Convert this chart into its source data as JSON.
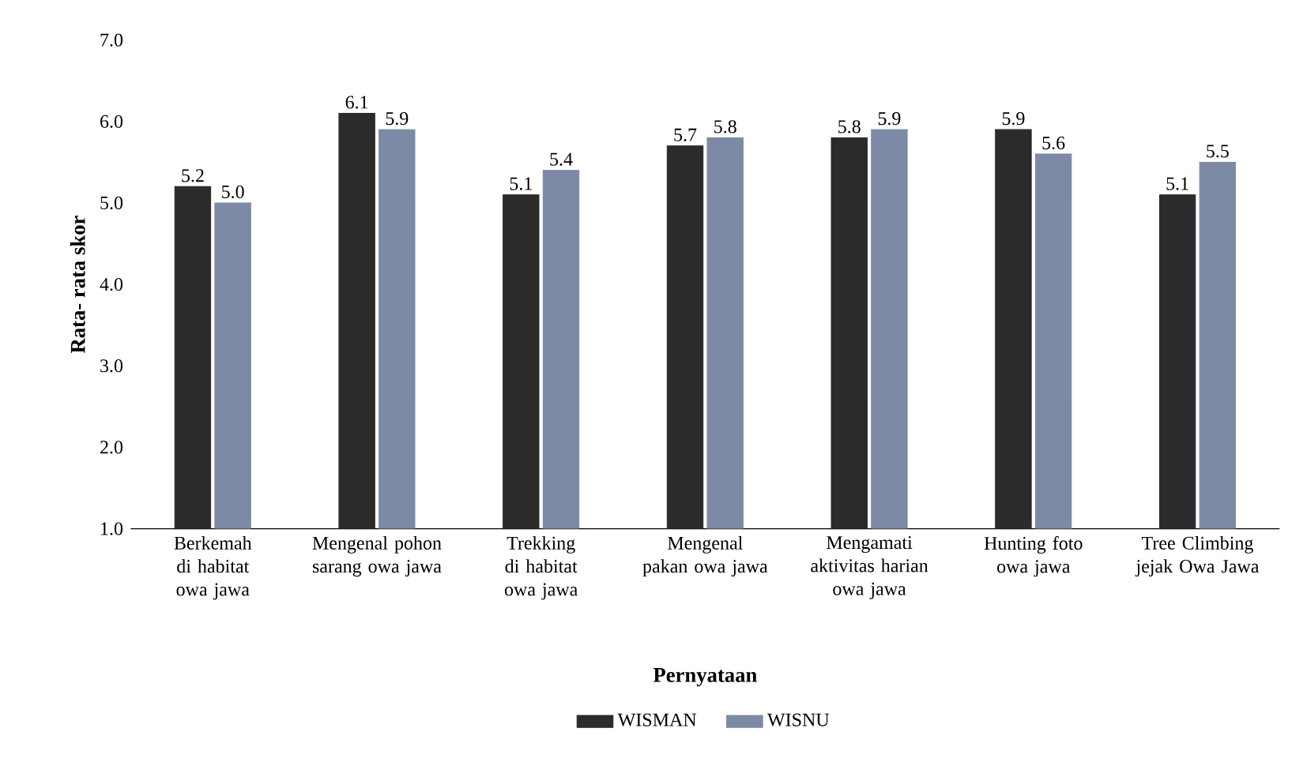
{
  "chart_data": {
    "type": "bar",
    "xlabel": "Pernyataan",
    "ylabel": "Rata- rata skor",
    "categories": [
      "Berkemah di habitat owa jawa",
      "Mengenal pohon sarang owa jawa",
      "Trekking di habitat owa jawa",
      "Mengenal pakan owa jawa",
      "Mengamati aktivitas harian owa jawa",
      "Hunting foto owa jawa",
      "Tree Climbing jejak Owa Jawa"
    ],
    "series": [
      {
        "name": "WISMAN",
        "color": "#2b2b2b",
        "values": [
          5.2,
          6.1,
          5.1,
          5.7,
          5.8,
          5.9,
          5.1
        ],
        "value_labels": [
          "5.2",
          "6.1",
          "5.1",
          "5.7",
          "5.8",
          "5.9",
          "5.1"
        ]
      },
      {
        "name": "WISNU",
        "color": "#7d8aa6",
        "values": [
          5.0,
          5.9,
          5.4,
          5.8,
          5.9,
          5.6,
          5.5
        ],
        "value_labels": [
          "5.0",
          "5.9",
          "5.4",
          "5.8",
          "5.9",
          "5.6",
          "5.5"
        ]
      }
    ],
    "ylim": [
      1,
      7
    ],
    "yticks": [
      {
        "value": 1,
        "label": "1.0"
      },
      {
        "value": 2,
        "label": "2.0"
      },
      {
        "value": 3,
        "label": "3.0"
      },
      {
        "value": 4,
        "label": "4.0"
      },
      {
        "value": 5,
        "label": "5.0"
      },
      {
        "value": 6,
        "label": "6.0"
      },
      {
        "value": 7,
        "label": "7.0"
      }
    ],
    "legend": "bottom",
    "grid": false
  }
}
